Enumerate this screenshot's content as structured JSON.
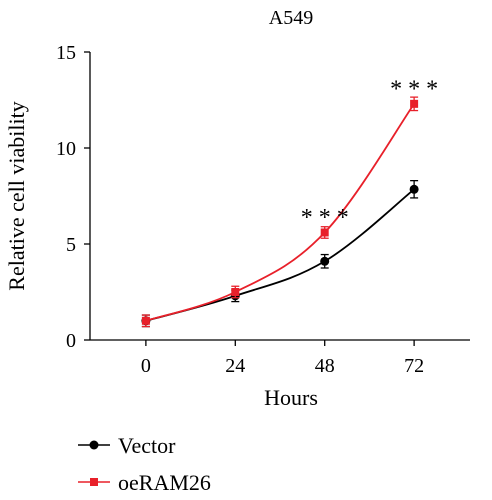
{
  "chart_data": {
    "type": "line",
    "title": "A549",
    "xlabel": "Hours",
    "ylabel": "Relative cell viability",
    "x": [
      0,
      24,
      48,
      72
    ],
    "x_tick_labels": [
      "0",
      "24",
      "48",
      "72"
    ],
    "xlim": [
      -15,
      87
    ],
    "ylim": [
      0,
      15
    ],
    "y_ticks": [
      0,
      5,
      10,
      15
    ],
    "y_tick_labels": [
      "0",
      "5",
      "10",
      "15"
    ],
    "legend_position": "bottom-left",
    "series": [
      {
        "name": "Vector",
        "color": "#000000",
        "marker": "circle",
        "values": [
          1.0,
          2.3,
          4.1,
          7.85
        ],
        "errors": [
          0.3,
          0.3,
          0.35,
          0.45
        ]
      },
      {
        "name": "oeRAM26",
        "color": "#e8202a",
        "marker": "square",
        "values": [
          1.0,
          2.5,
          5.6,
          12.3
        ],
        "errors": [
          0.3,
          0.3,
          0.3,
          0.35
        ]
      }
    ],
    "annotations": [
      {
        "text": "* * *",
        "x": 48,
        "y": 6.4
      },
      {
        "text": "* * *",
        "x": 72,
        "y": 13.1
      }
    ]
  }
}
